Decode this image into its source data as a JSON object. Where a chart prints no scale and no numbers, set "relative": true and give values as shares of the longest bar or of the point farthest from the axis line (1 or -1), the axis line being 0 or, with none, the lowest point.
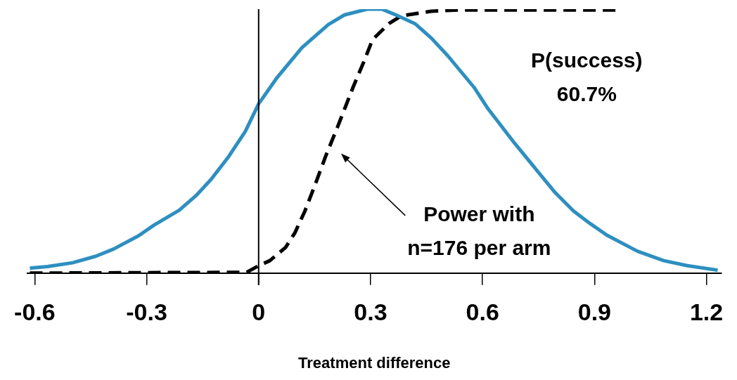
{
  "chart_data": {
    "type": "line",
    "relative": true,
    "xlabel": "Treatment difference",
    "xlim": [
      -0.62,
      1.24
    ],
    "xticks": [
      {
        "value": -0.6,
        "label": "-0.6"
      },
      {
        "value": -0.3,
        "label": "-0.3"
      },
      0,
      {
        "value": 0.3,
        "label": "0.3"
      },
      {
        "value": 0.6,
        "label": "0.6"
      },
      {
        "value": 0.9,
        "label": "0.9"
      },
      {
        "value": 1.2,
        "label": "1.2"
      }
    ],
    "grid": false,
    "legend": false,
    "marker": "none",
    "series": [
      {
        "color": "#2e8fc0",
        "line_style": "solid",
        "x": [
          -0.613,
          -0.566,
          -0.499,
          -0.436,
          -0.389,
          -0.322,
          -0.28,
          -0.213,
          -0.166,
          -0.128,
          -0.08,
          -0.036,
          0,
          0.048,
          0.116,
          0.187,
          0.23,
          0.291,
          0.33,
          0.373,
          0.419,
          0.463,
          0.507,
          0.577,
          0.615,
          0.686,
          0.792,
          0.844,
          0.888,
          0.933,
          1.015,
          1.086,
          1.149,
          1.23
        ],
        "values": [
          0.019,
          0.025,
          0.039,
          0.064,
          0.091,
          0.141,
          0.182,
          0.238,
          0.296,
          0.354,
          0.442,
          0.536,
          0.641,
          0.738,
          0.854,
          0.942,
          0.978,
          1,
          1,
          0.975,
          0.945,
          0.89,
          0.823,
          0.704,
          0.622,
          0.492,
          0.309,
          0.235,
          0.188,
          0.144,
          0.083,
          0.047,
          0.028,
          0.011
        ]
      },
      {
        "color": "#000000",
        "line_style": "dashed",
        "x": [
          -0.613,
          -0.032,
          0,
          0.03,
          0.072,
          0.097,
          0.124,
          0.149,
          0.181,
          0.211,
          0.234,
          0.253,
          0.282,
          0.305,
          0.349,
          0.383,
          0.463,
          0.539,
          0.634,
          0.964
        ],
        "values": [
          0,
          0.003,
          0.028,
          0.047,
          0.097,
          0.152,
          0.235,
          0.326,
          0.448,
          0.552,
          0.635,
          0.704,
          0.801,
          0.884,
          0.945,
          0.975,
          0.992,
          0.997,
          0.997,
          0.997
        ]
      }
    ],
    "ref_lines": [
      {
        "axis": "x",
        "value": 0,
        "color": "#000000",
        "line_style": "solid"
      }
    ],
    "annotations": [
      "P(success)\n60.7%",
      "Power with\nn=176 per arm"
    ]
  }
}
